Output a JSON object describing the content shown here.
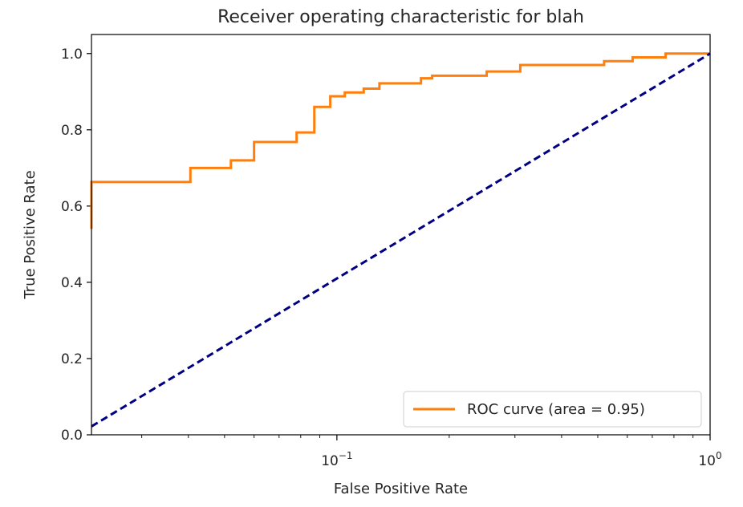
{
  "chart_data": {
    "type": "line",
    "title": "Receiver operating characteristic for blah",
    "xlabel": "False Positive Rate",
    "ylabel": "True Positive Rate",
    "xscale": "log",
    "xlim": [
      0.022,
      1.0
    ],
    "ylim": [
      0.0,
      1.05
    ],
    "x_ticks": [
      {
        "value": 0.1,
        "base": "10",
        "exp": "−1"
      },
      {
        "value": 1.0,
        "base": "10",
        "exp": "0"
      }
    ],
    "y_ticks": [
      "0.0",
      "0.2",
      "0.4",
      "0.6",
      "0.8",
      "1.0"
    ],
    "grid": false,
    "legend_position": "lower-right",
    "series": [
      {
        "name": "ROC curve (area = 0.95)",
        "color": "#ff7f0e",
        "style": "solid",
        "step": "post",
        "x": [
          0.022,
          0.022,
          0.0405,
          0.0405,
          0.052,
          0.052,
          0.06,
          0.06,
          0.078,
          0.078,
          0.087,
          0.087,
          0.096,
          0.096,
          0.105,
          0.105,
          0.118,
          0.118,
          0.13,
          0.13,
          0.168,
          0.168,
          0.18,
          0.18,
          0.252,
          0.252,
          0.31,
          0.31,
          0.52,
          0.52,
          0.62,
          0.62,
          0.76,
          0.76,
          1.0
        ],
        "y": [
          0.54,
          0.663,
          0.663,
          0.7,
          0.7,
          0.72,
          0.72,
          0.768,
          0.768,
          0.793,
          0.793,
          0.86,
          0.86,
          0.888,
          0.888,
          0.898,
          0.898,
          0.908,
          0.908,
          0.922,
          0.922,
          0.935,
          0.935,
          0.942,
          0.942,
          0.953,
          0.953,
          0.97,
          0.97,
          0.98,
          0.98,
          0.99,
          0.99,
          1.0,
          1.0
        ]
      },
      {
        "name": "",
        "color": "#000080",
        "style": "dashed",
        "x": [
          0.022,
          1.0
        ],
        "y": [
          0.022,
          1.0
        ]
      }
    ]
  }
}
